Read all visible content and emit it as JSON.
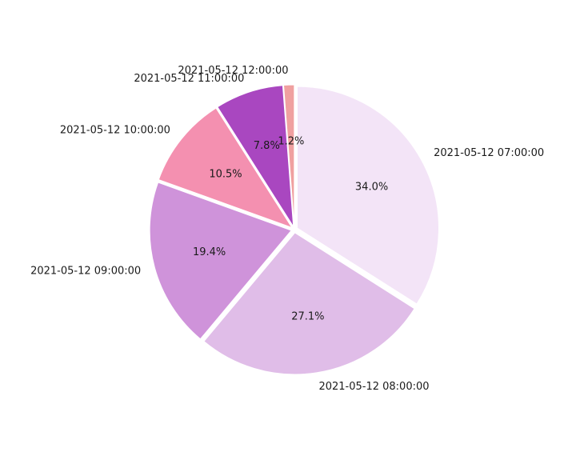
{
  "chart_data": {
    "type": "pie",
    "categories": [
      "2021-05-12 07:00:00",
      "2021-05-12 08:00:00",
      "2021-05-12 09:00:00",
      "2021-05-12 10:00:00",
      "2021-05-12 11:00:00",
      "2021-05-12 12:00:00"
    ],
    "values": [
      34.0,
      27.1,
      19.4,
      10.5,
      7.8,
      1.2
    ],
    "percent_labels": [
      "34.0%",
      "27.1%",
      "19.4%",
      "10.5%",
      "7.8%",
      "1.2%"
    ],
    "colors": [
      "#f3e4f7",
      "#e0bde8",
      "#cf93da",
      "#f490b0",
      "#a947c0",
      "#f0a0a0"
    ],
    "start_angle_deg": 90,
    "direction": "clockwise",
    "exploded": true,
    "title": "",
    "legend": "none"
  }
}
